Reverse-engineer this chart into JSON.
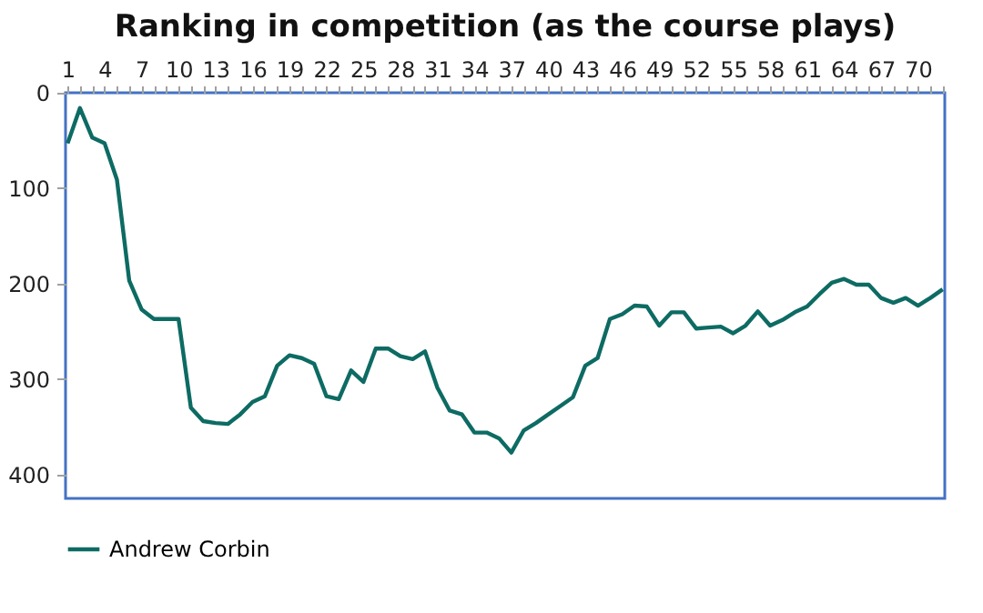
{
  "chart_data": {
    "type": "line",
    "title": "Ranking in competition (as the course plays)",
    "categories": [
      "1",
      null,
      null,
      "4",
      null,
      null,
      "7",
      null,
      null,
      "10",
      null,
      null,
      "13",
      null,
      null,
      "16",
      null,
      null,
      "19",
      null,
      null,
      "22",
      null,
      null,
      "25",
      null,
      null,
      "28",
      null,
      null,
      "31",
      null,
      null,
      "34",
      null,
      null,
      "37",
      null,
      null,
      "40",
      null,
      null,
      "43",
      null,
      null,
      "46",
      null,
      null,
      "49",
      null,
      null,
      "52",
      null,
      null,
      "55",
      null,
      null,
      "58",
      null,
      null,
      "61",
      null,
      null,
      "64",
      null,
      null,
      "67",
      null,
      null,
      "70",
      null,
      null
    ],
    "series": [
      {
        "name": "Andrew Corbin",
        "color": "#0d6b63",
        "values": [
          53,
          16,
          47,
          53,
          91,
          197,
          227,
          237,
          237,
          237,
          330,
          344,
          346,
          347,
          337,
          324,
          318,
          286,
          275,
          278,
          284,
          318,
          321,
          291,
          303,
          268,
          268,
          276,
          279,
          271,
          309,
          333,
          337,
          356,
          356,
          362,
          377,
          354,
          346,
          337,
          328,
          319,
          286,
          278,
          237,
          232,
          223,
          224,
          244,
          230,
          230,
          247,
          246,
          245,
          252,
          244,
          229,
          244,
          238,
          230,
          224,
          211,
          199,
          195,
          201,
          201,
          215,
          220,
          215,
          223,
          215,
          206
        ]
      }
    ],
    "ylim": [
      425,
      0
    ],
    "yticks": [
      0,
      100,
      200,
      300,
      400
    ],
    "grid": false,
    "legend": "bottom"
  }
}
